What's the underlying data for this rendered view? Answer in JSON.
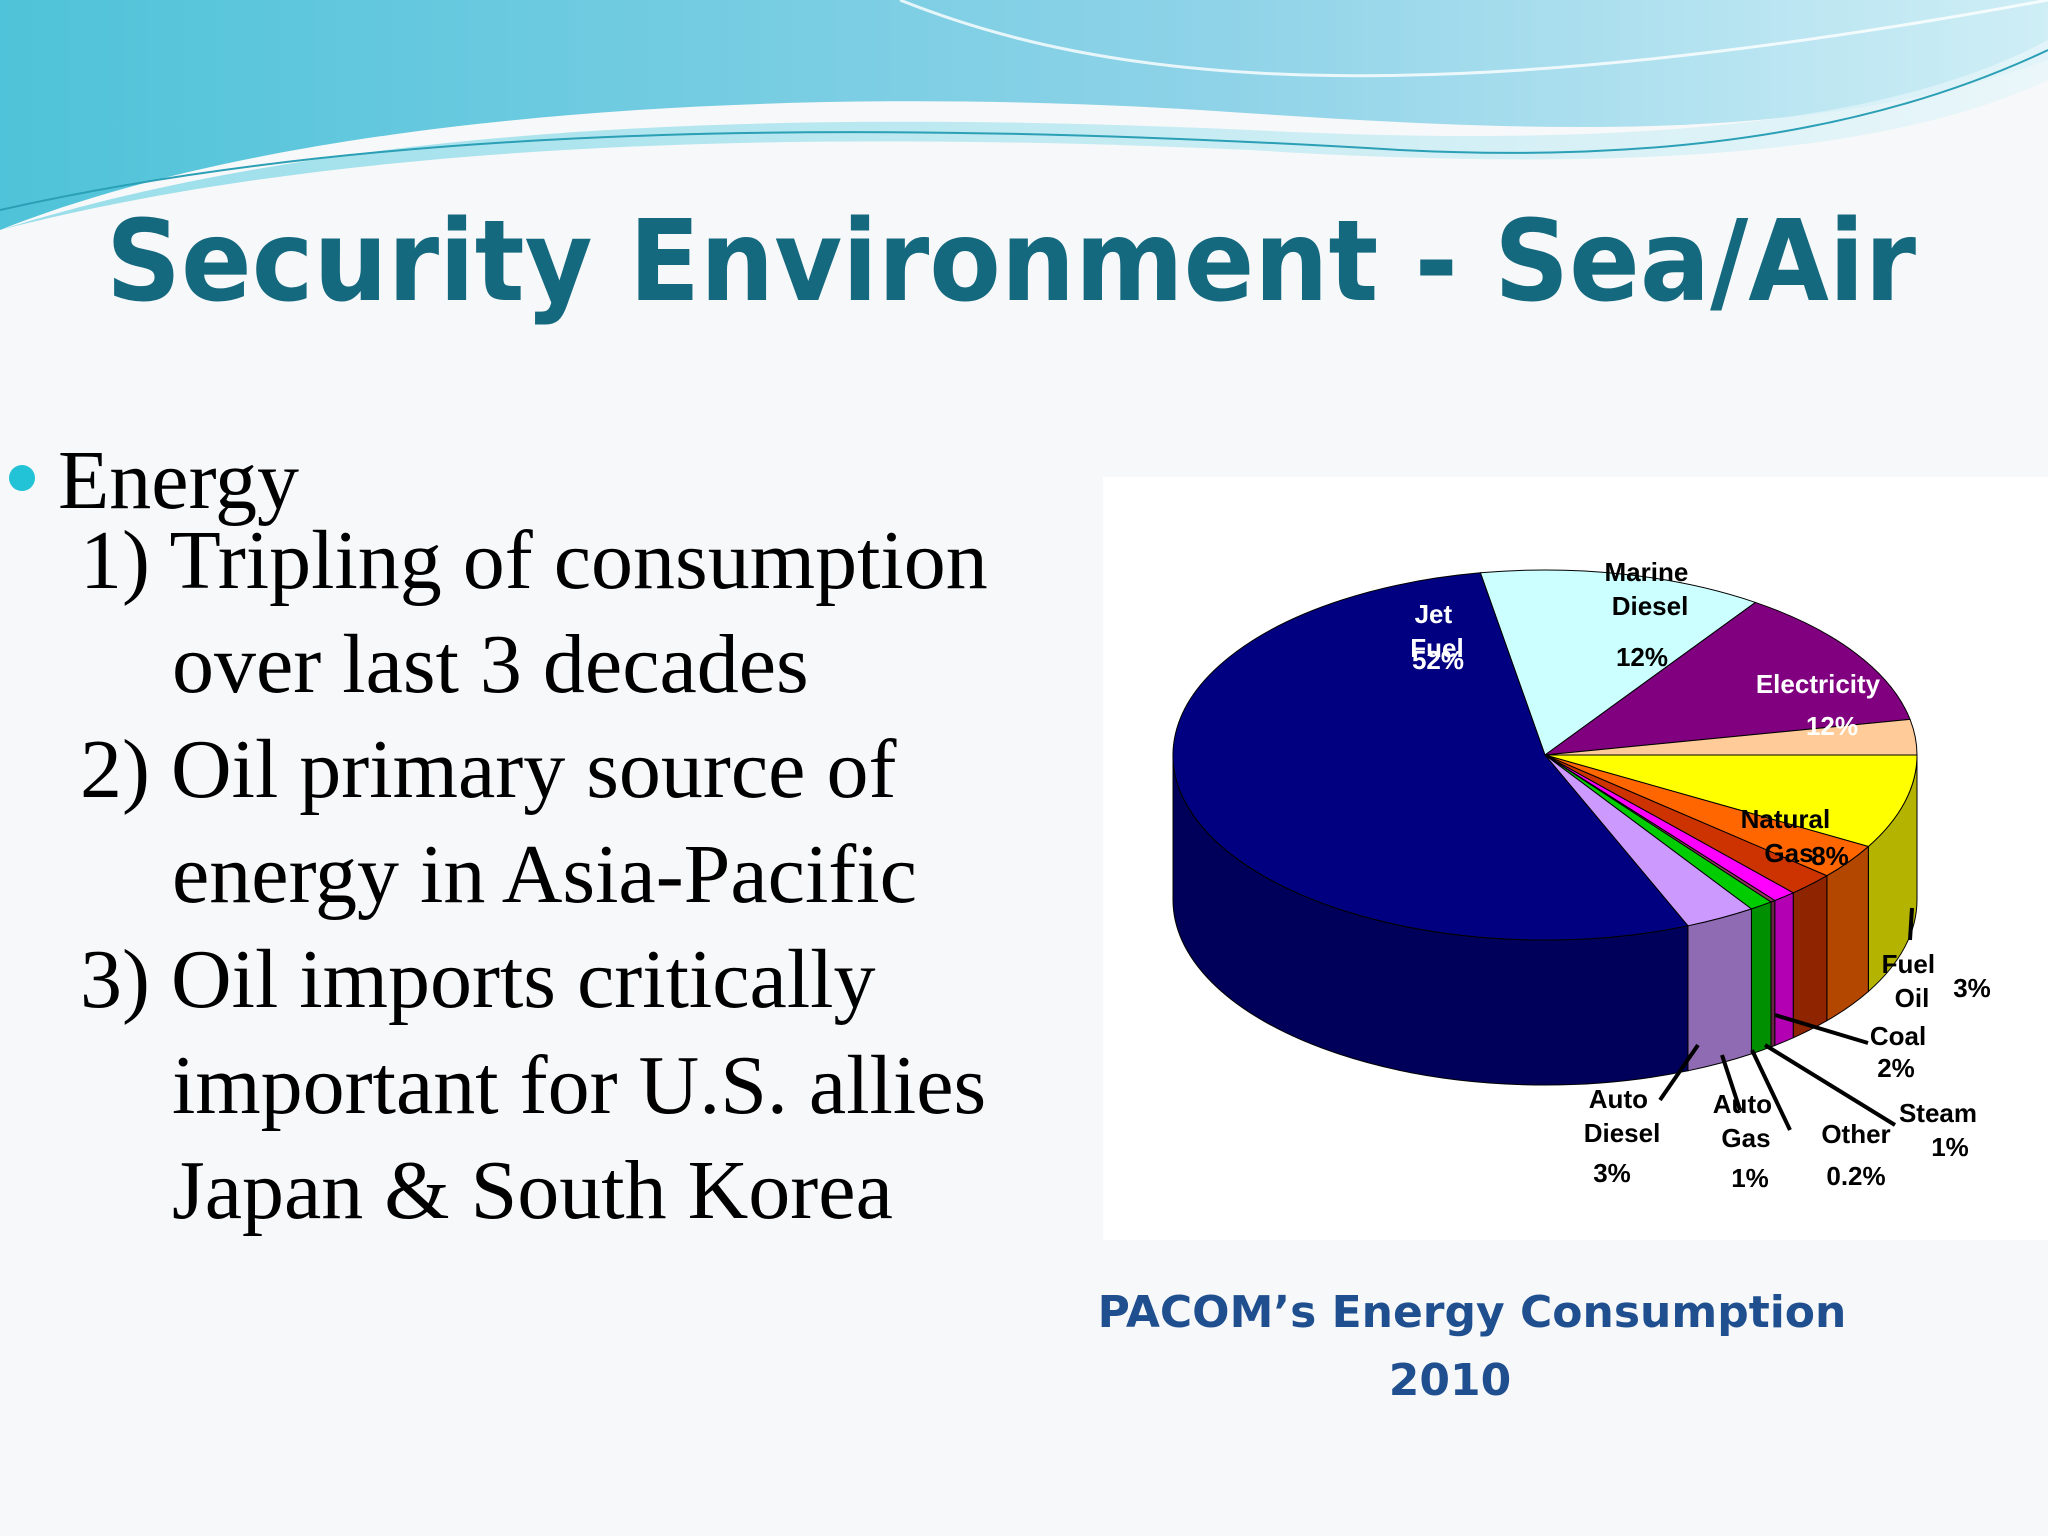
{
  "slide": {
    "title": "Security Environment - Sea/Air",
    "bullet": "Energy",
    "items": [
      [
        "1) Tripling of consumption",
        "over last 3 decades"
      ],
      [
        "2) Oil primary source of",
        "energy in Asia-Pacific"
      ],
      [
        "3) Oil imports critically",
        "important for U.S. allies",
        "Japan & South Korea"
      ]
    ]
  },
  "chart_data": {
    "type": "pie",
    "three_d": true,
    "title_lines": [
      "PACOM’s Energy Consumption",
      "2010"
    ],
    "categories": [
      "Marine Diesel",
      "Electricity",
      null,
      "Natural Gas",
      "Fuel Oil",
      "Coal",
      "Steam",
      "Other",
      "Auto Gas",
      "Auto Diesel",
      "Jet Fuel"
    ],
    "values": [
      12,
      12,
      3,
      8,
      3,
      2,
      1,
      0.2,
      1,
      3,
      52
    ],
    "value_labels": [
      "12%",
      "12%",
      null,
      "8%",
      "3%",
      "2%",
      "1%",
      "0.2%",
      "1%",
      "3%",
      "52%"
    ],
    "colors": [
      "#ccffff",
      "#800080",
      "#ffcc99",
      "#ffff00",
      "#ff6600",
      "#cc3300",
      "#ff00ff",
      "#993366",
      "#00cc00",
      "#cc99ff",
      "#000080"
    ]
  }
}
